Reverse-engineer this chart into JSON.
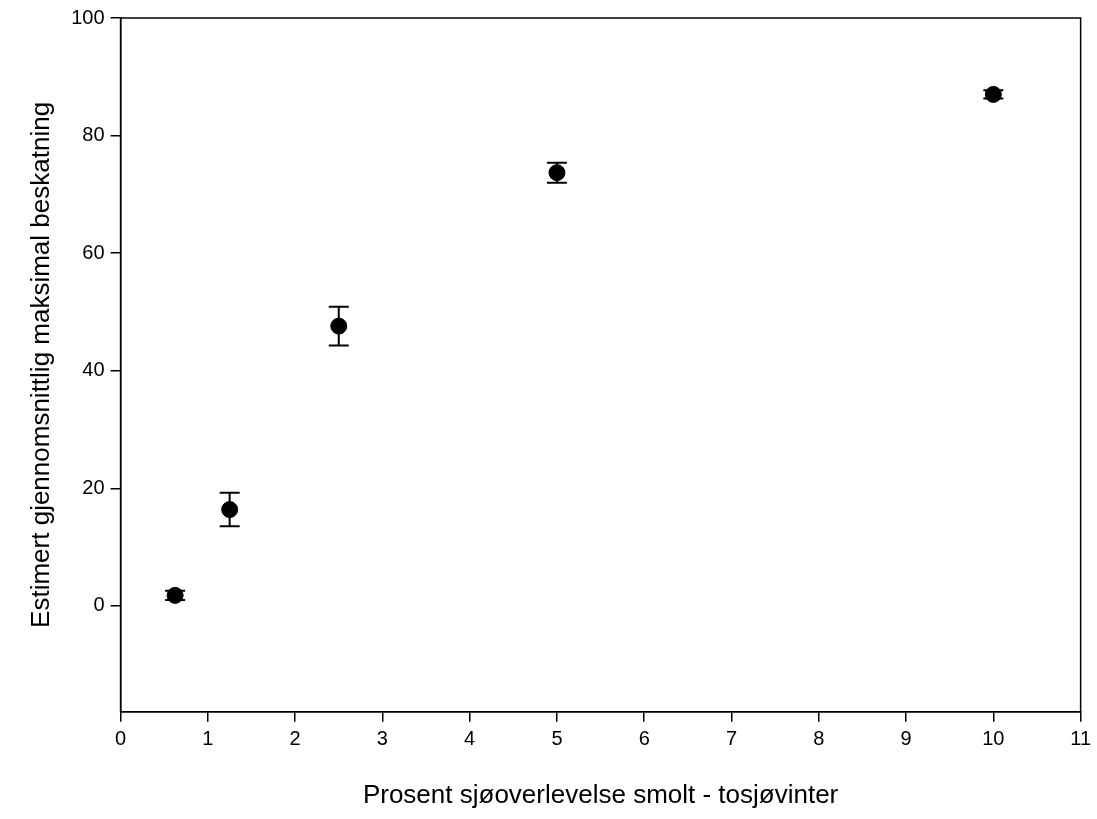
{
  "chart_data": {
    "type": "scatter",
    "xlabel": "Prosent sjøoverlevelse smolt - tosjøvinter",
    "ylabel": "Estimert gjennomsnittlig maksimal beskatning",
    "x": [
      0.625,
      1.25,
      2.5,
      5,
      10
    ],
    "series": [
      {
        "color": "#000000",
        "values": [
          1.8,
          16.4,
          47.6,
          73.7,
          87.0
        ],
        "errors": [
          0.8,
          2.85,
          3.3,
          1.7,
          0.7
        ]
      }
    ],
    "xlim": [
      0,
      11
    ],
    "xticks": [
      0,
      1,
      2,
      3,
      4,
      5,
      6,
      7,
      8,
      9,
      10,
      11
    ],
    "ylim": [
      -18,
      100
    ],
    "yticks": [
      0,
      20,
      40,
      60,
      80,
      100
    ],
    "grid": false,
    "legend": false,
    "marker": "circle"
  }
}
